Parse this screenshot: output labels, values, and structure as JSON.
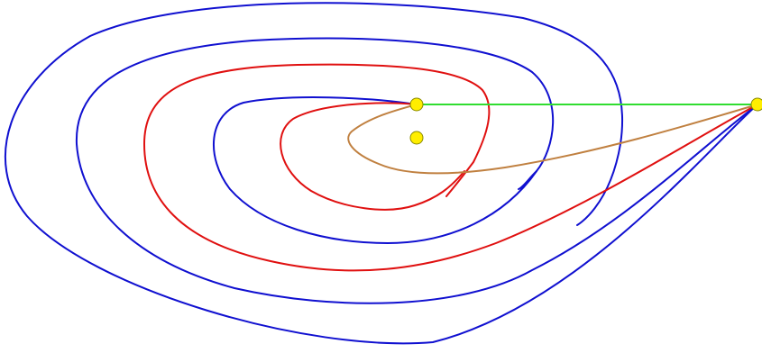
{
  "colors": {
    "background": "#ffffff",
    "blue_curve": "#1010d0",
    "red_curve": "#e01010",
    "brown_curve": "#c08040",
    "green_line": "#30dd30",
    "point_fill": "#ffee00",
    "point_stroke": "#8a8a00"
  },
  "elements": {
    "curves": [
      {
        "name": "outer-blue-loop",
        "color": "blue"
      },
      {
        "name": "second-blue-loop",
        "color": "blue"
      },
      {
        "name": "outer-red-loop",
        "color": "red"
      },
      {
        "name": "inner-blue-loop",
        "color": "blue"
      },
      {
        "name": "inner-red-loop",
        "color": "red"
      },
      {
        "name": "brown-loop",
        "color": "brown"
      }
    ],
    "line": {
      "name": "green-segment",
      "color": "green"
    },
    "points": [
      {
        "name": "focal-point"
      },
      {
        "name": "center-point"
      },
      {
        "name": "far-right-point"
      }
    ]
  }
}
